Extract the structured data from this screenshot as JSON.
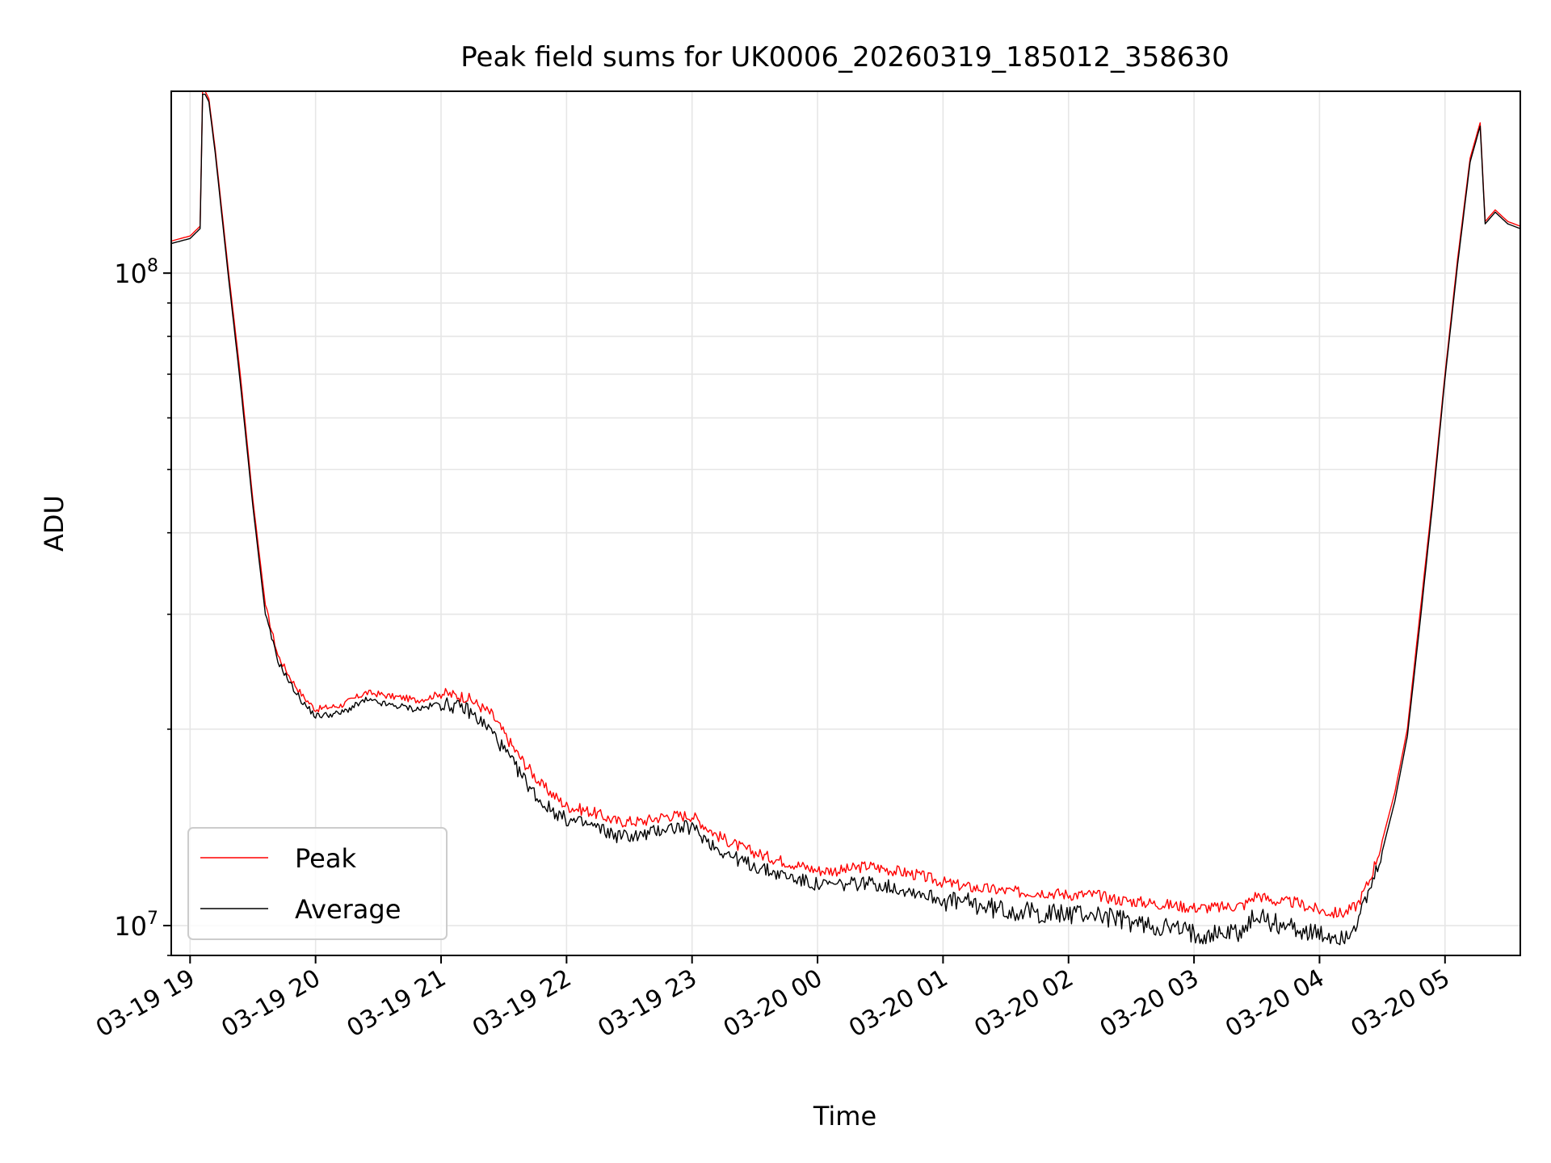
{
  "chart_data": {
    "type": "line",
    "title": "Peak field sums for UK0006_20260319_185012_358630",
    "xlabel": "Time",
    "ylabel": "ADU",
    "yscale": "log",
    "ylim": [
      9000000,
      190000000
    ],
    "xlim_hours": [
      -0.15,
      10.6
    ],
    "x_unit": "hours since 03-19 19:00",
    "grid": true,
    "legend_position": "lower-left",
    "x_ticks": [
      {
        "value": 0,
        "label": "03-19 19"
      },
      {
        "value": 1,
        "label": "03-19 20"
      },
      {
        "value": 2,
        "label": "03-19 21"
      },
      {
        "value": 3,
        "label": "03-19 22"
      },
      {
        "value": 4,
        "label": "03-19 23"
      },
      {
        "value": 5,
        "label": "03-20 00"
      },
      {
        "value": 6,
        "label": "03-20 01"
      },
      {
        "value": 7,
        "label": "03-20 02"
      },
      {
        "value": 8,
        "label": "03-20 03"
      },
      {
        "value": 9,
        "label": "03-20 04"
      },
      {
        "value": 10,
        "label": "03-20 05"
      }
    ],
    "y_ticks": [
      {
        "value": 10000000,
        "base": "10",
        "exp": "7"
      },
      {
        "value": 100000000,
        "base": "10",
        "exp": "8"
      }
    ],
    "series": [
      {
        "name": "Peak",
        "color": "#ff0000",
        "x": [
          -0.15,
          0.0,
          0.08,
          0.1,
          0.12,
          0.15,
          0.2,
          0.3,
          0.4,
          0.5,
          0.6,
          0.7,
          0.8,
          0.9,
          1.0,
          1.2,
          1.4,
          1.5,
          1.6,
          1.7,
          1.8,
          1.9,
          2.0,
          2.2,
          2.4,
          2.6,
          2.8,
          3.0,
          3.2,
          3.4,
          3.6,
          3.8,
          4.0,
          4.2,
          4.4,
          4.6,
          4.8,
          5.0,
          5.2,
          5.4,
          5.6,
          5.8,
          6.0,
          6.2,
          6.4,
          6.6,
          6.8,
          7.0,
          7.2,
          7.4,
          7.6,
          7.8,
          8.0,
          8.2,
          8.4,
          8.5,
          8.6,
          8.7,
          8.8,
          9.0,
          9.1,
          9.2,
          9.3,
          9.4,
          9.5,
          9.6,
          9.7,
          9.8,
          9.9,
          10.0,
          10.1,
          10.2,
          10.28,
          10.32,
          10.4,
          10.5,
          10.6
        ],
        "values": [
          112000000,
          114000000,
          118000000,
          190000000,
          190000000,
          185000000,
          155000000,
          103000000,
          70000000,
          45000000,
          31000000,
          26000000,
          24000000,
          22500000,
          21500000,
          21800000,
          22800000,
          22700000,
          22500000,
          22400000,
          22200000,
          22400000,
          22800000,
          22500000,
          21200000,
          18500000,
          16500000,
          15300000,
          15000000,
          14500000,
          14500000,
          14800000,
          14800000,
          13800000,
          13200000,
          12800000,
          12500000,
          12200000,
          12200000,
          12400000,
          12200000,
          12000000,
          11700000,
          11500000,
          11400000,
          11300000,
          11300000,
          11200000,
          11200000,
          11000000,
          10900000,
          10800000,
          10700000,
          10700000,
          10800000,
          11200000,
          11000000,
          10900000,
          10900000,
          10600000,
          10500000,
          10500000,
          10800000,
          11800000,
          13500000,
          16000000,
          20000000,
          30000000,
          45000000,
          70000000,
          105000000,
          150000000,
          170000000,
          120000000,
          125000000,
          120000000,
          118000000
        ]
      },
      {
        "name": "Average",
        "color": "#000000",
        "x": [
          -0.15,
          0.0,
          0.08,
          0.1,
          0.12,
          0.15,
          0.2,
          0.3,
          0.4,
          0.5,
          0.6,
          0.7,
          0.8,
          0.9,
          1.0,
          1.2,
          1.4,
          1.5,
          1.6,
          1.7,
          1.8,
          1.9,
          2.0,
          2.2,
          2.4,
          2.6,
          2.8,
          3.0,
          3.2,
          3.4,
          3.6,
          3.8,
          4.0,
          4.2,
          4.4,
          4.6,
          4.8,
          5.0,
          5.2,
          5.4,
          5.6,
          5.8,
          6.0,
          6.2,
          6.4,
          6.6,
          6.8,
          7.0,
          7.2,
          7.4,
          7.6,
          7.8,
          8.0,
          8.2,
          8.4,
          8.5,
          8.6,
          8.7,
          8.8,
          9.0,
          9.1,
          9.2,
          9.3,
          9.4,
          9.5,
          9.6,
          9.7,
          9.8,
          9.9,
          10.0,
          10.1,
          10.2,
          10.28,
          10.32,
          10.4,
          10.5,
          10.6
        ],
        "values": [
          111000000,
          113000000,
          117000000,
          188000000,
          188000000,
          183000000,
          153000000,
          101000000,
          68000000,
          44000000,
          30000000,
          25500000,
          23500000,
          22000000,
          21000000,
          21200000,
          22200000,
          22000000,
          21800000,
          21700000,
          21500000,
          21700000,
          22000000,
          21600000,
          20000000,
          17500000,
          15500000,
          14600000,
          14300000,
          13800000,
          13800000,
          14200000,
          14200000,
          13200000,
          12600000,
          12200000,
          11900000,
          11600000,
          11600000,
          11700000,
          11500000,
          11300000,
          11000000,
          10900000,
          10700000,
          10600000,
          10500000,
          10500000,
          10500000,
          10300000,
          10100000,
          10000000,
          9800000,
          9800000,
          9900000,
          10500000,
          10200000,
          10100000,
          10000000,
          9700000,
          9700000,
          9700000,
          10200000,
          11300000,
          13000000,
          15500000,
          19500000,
          29000000,
          44000000,
          69000000,
          103000000,
          148000000,
          168000000,
          119000000,
          124000000,
          119000000,
          117000000
        ]
      }
    ]
  }
}
